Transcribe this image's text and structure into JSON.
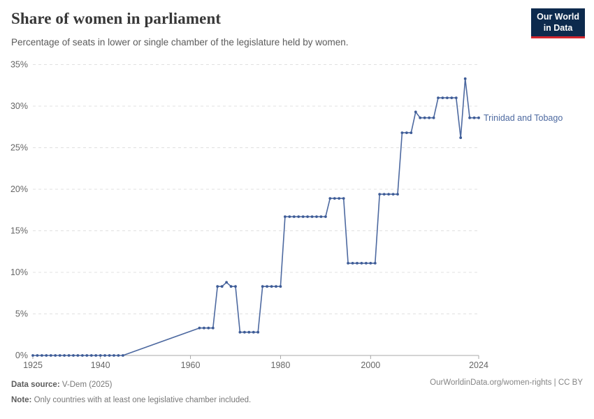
{
  "header": {
    "title": "Share of women in parliament",
    "subtitle": "Percentage of seats in lower or single chamber of the legislature held by women.",
    "logo_line1": "Our World",
    "logo_line2": "in Data"
  },
  "footer": {
    "source_label": "Data source:",
    "source_value": "V-Dem (2025)",
    "note_label": "Note:",
    "note_value": "Only countries with at least one legislative chamber included.",
    "url": "OurWorldinData.org/women-rights",
    "separator": " | ",
    "license": "CC BY"
  },
  "colors": {
    "line": "#4d69a0",
    "marker": "#3e5c97",
    "series_label": "#4d69a0",
    "gridline": "#e0e0e0",
    "axis_line": "#a8a8a8",
    "axis_text": "#666666",
    "logo_bg": "#0d2a4d",
    "logo_accent": "#d2262e"
  },
  "chart_data": {
    "type": "line",
    "title": "Share of women in parliament",
    "xlabel": "",
    "ylabel": "",
    "xlim": [
      1925,
      2024
    ],
    "ylim": [
      0,
      35
    ],
    "xticks": [
      1925,
      1940,
      1960,
      1980,
      2000,
      2024
    ],
    "yticks": [
      0,
      5,
      10,
      15,
      20,
      25,
      30,
      35
    ],
    "ytick_suffix": "%",
    "grid": "dashed-horizontal",
    "legend_position": "end-of-line-label",
    "series": [
      {
        "name": "Trinidad and Tobago",
        "points": [
          [
            1925,
            0
          ],
          [
            1926,
            0
          ],
          [
            1927,
            0
          ],
          [
            1928,
            0
          ],
          [
            1929,
            0
          ],
          [
            1930,
            0
          ],
          [
            1931,
            0
          ],
          [
            1932,
            0
          ],
          [
            1933,
            0
          ],
          [
            1934,
            0
          ],
          [
            1935,
            0
          ],
          [
            1936,
            0
          ],
          [
            1937,
            0
          ],
          [
            1938,
            0
          ],
          [
            1939,
            0
          ],
          [
            1940,
            0
          ],
          [
            1941,
            0
          ],
          [
            1942,
            0
          ],
          [
            1943,
            0
          ],
          [
            1944,
            0
          ],
          [
            1945,
            0
          ],
          [
            1962,
            3.3
          ],
          [
            1963,
            3.3
          ],
          [
            1964,
            3.3
          ],
          [
            1965,
            3.3
          ],
          [
            1966,
            8.3
          ],
          [
            1967,
            8.3
          ],
          [
            1968,
            8.8
          ],
          [
            1969,
            8.3
          ],
          [
            1970,
            8.3
          ],
          [
            1971,
            2.8
          ],
          [
            1972,
            2.8
          ],
          [
            1973,
            2.8
          ],
          [
            1974,
            2.8
          ],
          [
            1975,
            2.8
          ],
          [
            1976,
            8.3
          ],
          [
            1977,
            8.3
          ],
          [
            1978,
            8.3
          ],
          [
            1979,
            8.3
          ],
          [
            1980,
            8.3
          ],
          [
            1981,
            16.7
          ],
          [
            1982,
            16.7
          ],
          [
            1983,
            16.7
          ],
          [
            1984,
            16.7
          ],
          [
            1985,
            16.7
          ],
          [
            1986,
            16.7
          ],
          [
            1987,
            16.7
          ],
          [
            1988,
            16.7
          ],
          [
            1989,
            16.7
          ],
          [
            1990,
            16.7
          ],
          [
            1991,
            18.9
          ],
          [
            1992,
            18.9
          ],
          [
            1993,
            18.9
          ],
          [
            1994,
            18.9
          ],
          [
            1995,
            11.1
          ],
          [
            1996,
            11.1
          ],
          [
            1997,
            11.1
          ],
          [
            1998,
            11.1
          ],
          [
            1999,
            11.1
          ],
          [
            2000,
            11.1
          ],
          [
            2001,
            11.1
          ],
          [
            2002,
            19.4
          ],
          [
            2003,
            19.4
          ],
          [
            2004,
            19.4
          ],
          [
            2005,
            19.4
          ],
          [
            2006,
            19.4
          ],
          [
            2007,
            26.8
          ],
          [
            2008,
            26.8
          ],
          [
            2009,
            26.8
          ],
          [
            2010,
            29.3
          ],
          [
            2011,
            28.6
          ],
          [
            2012,
            28.6
          ],
          [
            2013,
            28.6
          ],
          [
            2014,
            28.6
          ],
          [
            2015,
            31
          ],
          [
            2016,
            31
          ],
          [
            2017,
            31
          ],
          [
            2018,
            31
          ],
          [
            2019,
            31
          ],
          [
            2020,
            26.2
          ],
          [
            2021,
            33.3
          ],
          [
            2022,
            28.6
          ],
          [
            2023,
            28.6
          ],
          [
            2024,
            28.6
          ]
        ]
      }
    ]
  }
}
